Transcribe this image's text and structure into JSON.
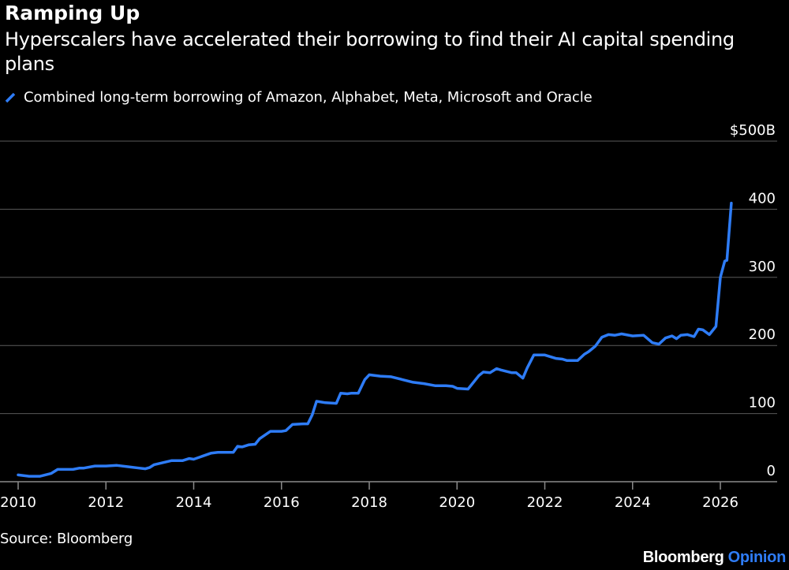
{
  "header": {
    "title": "Ramping Up",
    "subtitle": "Hyperscalers have accelerated their borrowing to find their AI capital spending plans"
  },
  "legend": {
    "label": "Combined long-term borrowing of Amazon, Alphabet, Meta, Microsoft and Oracle"
  },
  "footer": {
    "source": "Source: Bloomberg",
    "brand_main": "Bloomberg",
    "brand_accent": "Opinion"
  },
  "colors": {
    "background": "#000000",
    "series": "#2e7cf6",
    "grid": "#5a5a5a",
    "text": "#ffffff"
  },
  "chart_data": {
    "type": "line",
    "title": "Ramping Up",
    "subtitle": "Hyperscalers have accelerated their borrowing to find their AI capital spending plans",
    "xlabel": "",
    "ylabel": "",
    "xlim": [
      2010,
      2027
    ],
    "ylim": [
      0,
      500
    ],
    "grid": true,
    "legend_position": "top-left",
    "x_ticks": [
      2010,
      2012,
      2014,
      2016,
      2018,
      2020,
      2022,
      2024,
      2026
    ],
    "x_tick_labels": [
      "2010",
      "2012",
      "2014",
      "2016",
      "2018",
      "2020",
      "2022",
      "2024",
      "2026"
    ],
    "y_ticks": [
      0,
      100,
      200,
      300,
      400,
      500
    ],
    "y_tick_labels": [
      "0",
      "100",
      "200",
      "300",
      "400",
      "$500B"
    ],
    "series": [
      {
        "name": "Combined long-term borrowing of Amazon, Alphabet, Meta, Microsoft and Oracle",
        "x": [
          2010.0,
          2010.25,
          2010.5,
          2010.75,
          2010.9,
          2011.25,
          2011.4,
          2011.5,
          2011.75,
          2012.0,
          2012.25,
          2012.5,
          2012.75,
          2012.9,
          2013.0,
          2013.1,
          2013.5,
          2013.75,
          2013.9,
          2014.0,
          2014.4,
          2014.55,
          2014.75,
          2014.9,
          2015.0,
          2015.1,
          2015.25,
          2015.4,
          2015.5,
          2015.75,
          2016.0,
          2016.1,
          2016.25,
          2016.5,
          2016.6,
          2016.7,
          2016.8,
          2017.0,
          2017.25,
          2017.35,
          2017.5,
          2017.6,
          2017.75,
          2017.9,
          2018.0,
          2018.25,
          2018.5,
          2018.75,
          2019.0,
          2019.25,
          2019.5,
          2019.75,
          2019.9,
          2020.0,
          2020.25,
          2020.5,
          2020.6,
          2020.75,
          2020.9,
          2021.0,
          2021.25,
          2021.35,
          2021.5,
          2021.6,
          2021.75,
          2022.0,
          2022.25,
          2022.4,
          2022.5,
          2022.75,
          2022.9,
          2023.0,
          2023.15,
          2023.3,
          2023.45,
          2023.6,
          2023.75,
          2024.0,
          2024.25,
          2024.45,
          2024.6,
          2024.75,
          2024.9,
          2025.0,
          2025.1,
          2025.25,
          2025.4,
          2025.5,
          2025.6,
          2025.75,
          2025.9,
          2026.0,
          2026.1,
          2026.15,
          2026.25
        ],
        "values": [
          10,
          8,
          8,
          12,
          18,
          18,
          20,
          20,
          23,
          23,
          24,
          22,
          20,
          19,
          21,
          25,
          31,
          31,
          34,
          33,
          42,
          43,
          43,
          43,
          52,
          51,
          54,
          55,
          63,
          74,
          74,
          75,
          84,
          85,
          85,
          98,
          118,
          116,
          115,
          130,
          129,
          130,
          130,
          150,
          157,
          155,
          154,
          150,
          146,
          144,
          141,
          141,
          140,
          137,
          136,
          156,
          161,
          160,
          166,
          164,
          160,
          160,
          152,
          167,
          186,
          186,
          181,
          180,
          178,
          178,
          187,
          191,
          199,
          212,
          216,
          215,
          217,
          214,
          215,
          204,
          202,
          211,
          214,
          210,
          215,
          216,
          213,
          224,
          223,
          216,
          228,
          300,
          324,
          325,
          409
        ]
      }
    ]
  }
}
